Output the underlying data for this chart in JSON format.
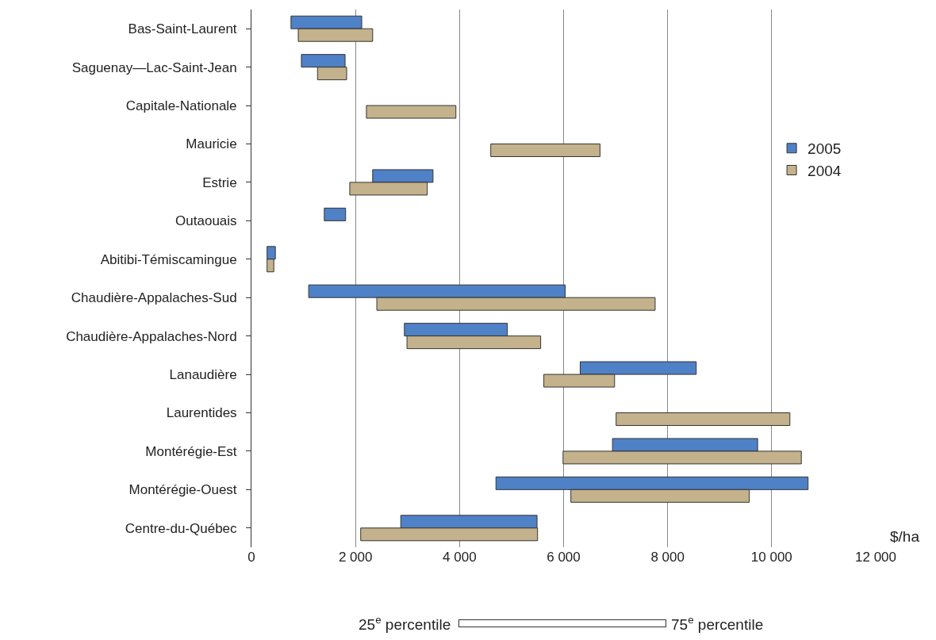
{
  "chart_data": {
    "type": "bar",
    "orientation": "horizontal",
    "categories": [
      "Bas-Saint-Laurent",
      "Saguenay—Lac-Saint-Jean",
      "Capitale-Nationale",
      "Mauricie",
      "Estrie",
      "Outaouais",
      "Abitibi-Témiscamingue",
      "Chaudière-Appalaches-Sud",
      "Chaudière-Appalaches-Nord",
      "Lanaudière",
      "Laurentides",
      "Montérégie-Est",
      "Montérégie-Ouest",
      "Centre-du-Québec"
    ],
    "series": [
      {
        "name": "2005",
        "color": "#4f81c7",
        "base": [
          760,
          960,
          null,
          null,
          2330,
          1400,
          300,
          1100,
          2940,
          6320,
          null,
          6940,
          4700,
          2870
        ],
        "values": [
          1360,
          840,
          null,
          null,
          1160,
          410,
          160,
          4930,
          1980,
          2230,
          null,
          2790,
          6000,
          2620
        ]
      },
      {
        "name": "2004",
        "color": "#c4b28c",
        "base": [
          900,
          1270,
          2210,
          4600,
          1890,
          null,
          300,
          2410,
          2990,
          5620,
          7010,
          5990,
          6140,
          2100
        ],
        "values": [
          1430,
          560,
          1720,
          2100,
          1490,
          null,
          130,
          5350,
          2570,
          1360,
          3340,
          4580,
          3430,
          3400
        ]
      }
    ],
    "xlim": [
      0,
      12000
    ],
    "xticks": [
      0,
      {
        "value": 2000,
        "label": "2 000"
      },
      {
        "value": 4000,
        "label": "4 000"
      },
      {
        "value": 6000,
        "label": "6 000"
      },
      {
        "value": 8000,
        "label": "8 000"
      },
      {
        "value": 10000,
        "label": "10 000"
      },
      {
        "value": 12000,
        "label": "12 000"
      }
    ],
    "xlabel": "$/ha",
    "grid": "x",
    "legend": "right",
    "annotations": [
      "25$^{e}$ percentile",
      "75$^{e}$ percentile"
    ]
  }
}
